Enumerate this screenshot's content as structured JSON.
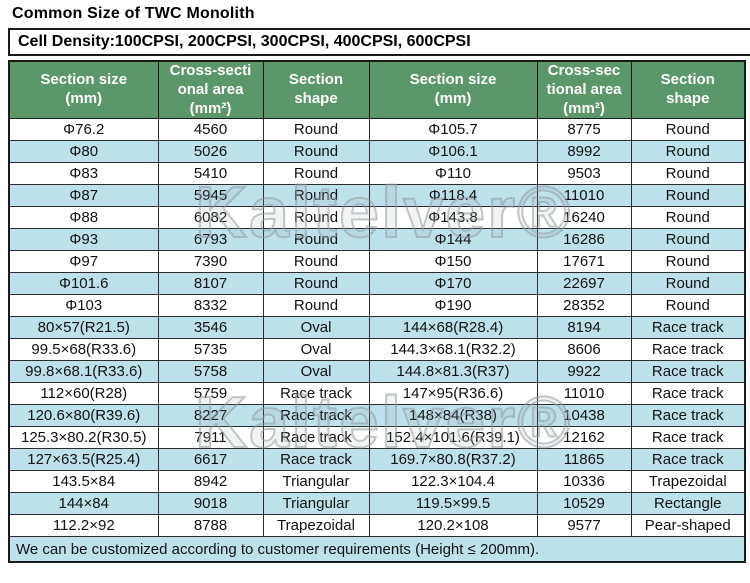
{
  "page": {
    "title": "Common Size of TWC Monolith",
    "subtitle": "Cell Density:100CPSI, 200CPSI, 300CPSI, 400CPSI, 600CPSI",
    "footer": "We can be customized according to customer requirements (Height ≤ 200mm).",
    "watermark": "Kaltelver®"
  },
  "colors": {
    "header_bg": "#5c9769",
    "stripe_bg": "#bde2ec",
    "footer_bg": "#bde2ec",
    "header_text": "#ffffff",
    "border": "#1a1a1a"
  },
  "chart_data": {
    "type": "table",
    "title": "Common Size of TWC Monolith",
    "columns": [
      "Section size\n(mm)",
      "Cross-secti\nonal area\n(mm²)",
      "Section\nshape",
      "Section size\n(mm)",
      "Cross-sec\ntional area\n(mm²)",
      "Section\nshape"
    ],
    "rows": [
      [
        "Φ76.2",
        "4560",
        "Round",
        "Φ105.7",
        "8775",
        "Round"
      ],
      [
        "Φ80",
        "5026",
        "Round",
        "Φ106.1",
        "8992",
        "Round"
      ],
      [
        "Φ83",
        "5410",
        "Round",
        "Φ110",
        "9503",
        "Round"
      ],
      [
        "Φ87",
        "5945",
        "Round",
        "Φ118.4",
        "11010",
        "Round"
      ],
      [
        "Φ88",
        "6082",
        "Round",
        "Φ143.8",
        "16240",
        "Round"
      ],
      [
        "Φ93",
        "6793",
        "Round",
        "Φ144",
        "16286",
        "Round"
      ],
      [
        "Φ97",
        "7390",
        "Round",
        "Φ150",
        "17671",
        "Round"
      ],
      [
        "Φ101.6",
        "8107",
        "Round",
        "Φ170",
        "22697",
        "Round"
      ],
      [
        "Φ103",
        "8332",
        "Round",
        "Φ190",
        "28352",
        "Round"
      ],
      [
        "80×57(R21.5)",
        "3546",
        "Oval",
        "144×68(R28.4)",
        "8194",
        "Race track"
      ],
      [
        "99.5×68(R33.6)",
        "5735",
        "Oval",
        "144.3×68.1(R32.2)",
        "8606",
        "Race track"
      ],
      [
        "99.8×68.1(R33.6)",
        "5758",
        "Oval",
        "144.8×81.3(R37)",
        "9922",
        "Race track"
      ],
      [
        "112×60(R28)",
        "5759",
        "Race track",
        "147×95(R36.6)",
        "11010",
        "Race track"
      ],
      [
        "120.6×80(R39.6)",
        "8227",
        "Race track",
        "148×84(R38)",
        "10438",
        "Race track"
      ],
      [
        "125.3×80.2(R30.5)",
        "7911",
        "Race track",
        "152.4×101.6(R39.1)",
        "12162",
        "Race track"
      ],
      [
        "127×63.5(R25.4)",
        "6617",
        "Race track",
        "169.7×80.8(R37.2)",
        "11865",
        "Race track"
      ],
      [
        "143.5×84",
        "8942",
        "Triangular",
        "122.3×104.4",
        "10336",
        "Trapezoidal"
      ],
      [
        "144×84",
        "9018",
        "Triangular",
        "119.5×99.5",
        "10529",
        "Rectangle"
      ],
      [
        "112.2×92",
        "8788",
        "Trapezoidal",
        "120.2×108",
        "9577",
        "Pear-shaped"
      ]
    ]
  }
}
